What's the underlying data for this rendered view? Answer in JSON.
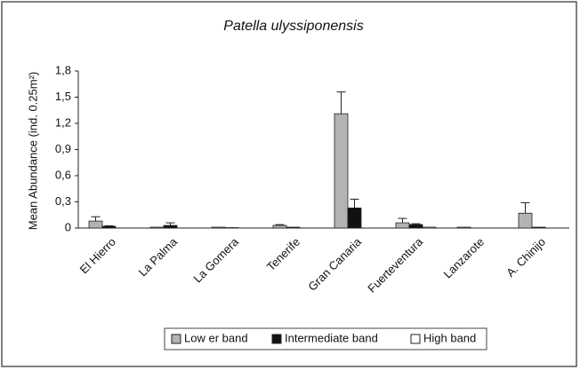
{
  "chart_data": {
    "type": "bar",
    "title": "Patella ulyssiponensis",
    "y_label": "Mean Abundance (ind. 0.25m²)",
    "categories": [
      "El Hierro",
      "La Palma",
      "La Gomera",
      "Tenerife",
      "Gran Canaria",
      "Fuerteventura",
      "Lanzarote",
      "A. Chinijo"
    ],
    "series": [
      {
        "name": "Low er band",
        "color": "#b3b3b3",
        "values": [
          0.08,
          0.01,
          0.01,
          0.03,
          1.31,
          0.06,
          0.01,
          0.17
        ],
        "errors": [
          0.05,
          0,
          0,
          0.01,
          0.25,
          0.05,
          0,
          0.12
        ]
      },
      {
        "name": "Intermediate band",
        "color": "#111111",
        "values": [
          0.02,
          0.03,
          0.005,
          0.01,
          0.23,
          0.04,
          0,
          0.01
        ],
        "errors": [
          0.005,
          0.03,
          0,
          0,
          0.1,
          0.01,
          0,
          0
        ]
      },
      {
        "name": "High band",
        "color": "#ffffff",
        "values": [
          0,
          0,
          0,
          0,
          0,
          0.01,
          0,
          0
        ],
        "errors": [
          0,
          0,
          0,
          0,
          0,
          0,
          0,
          0
        ]
      }
    ],
    "ylim": [
      0,
      1.8
    ],
    "yticks": [
      0,
      {
        "value": 0.3,
        "label": "0,3"
      },
      {
        "value": 0.6,
        "label": "0,6"
      },
      {
        "value": 0.9,
        "label": "0,9"
      },
      {
        "value": 1.2,
        "label": "1,2"
      },
      {
        "value": 1.5,
        "label": "1,5"
      },
      {
        "value": 1.8,
        "label": "1,8"
      }
    ],
    "grid": false,
    "legend": "bottom"
  }
}
